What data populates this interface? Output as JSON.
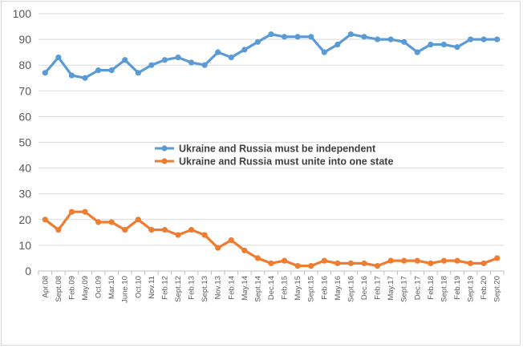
{
  "chart_data": {
    "type": "line",
    "title": "",
    "xlabel": "",
    "ylabel": "",
    "ylim": [
      0,
      100
    ],
    "yticks": [
      0,
      10,
      20,
      30,
      40,
      50,
      60,
      70,
      80,
      90,
      100
    ],
    "grid": true,
    "legend_position": "center-right",
    "categories": [
      "Apr.08",
      "Sept.08",
      "Feb.09",
      "May.09",
      "Oct.09",
      "Mar.10",
      "June.10",
      "Oct.10",
      "Nov.11",
      "Feb.12",
      "Sept.12",
      "Feb.13",
      "Sept.13",
      "Nov.13",
      "Feb.14",
      "May.14",
      "Sept.14",
      "Dec.14",
      "Feb.15",
      "May.15",
      "Sept.15",
      "Feb.16",
      "May.16",
      "Sept.16",
      "Dec.16",
      "Feb.17",
      "May.17",
      "Sept.17",
      "Dec.17",
      "Feb.18",
      "Sept.18",
      "Feb.19",
      "Sept.19",
      "Feb.20",
      "Sept.20"
    ],
    "series": [
      {
        "name": "Ukraine and Russia must be independent",
        "color": "#5b9bd5",
        "values": [
          77,
          83,
          76,
          75,
          78,
          78,
          82,
          77,
          80,
          82,
          83,
          81,
          80,
          85,
          83,
          86,
          89,
          92,
          91,
          91,
          91,
          85,
          88,
          92,
          91,
          90,
          90,
          89,
          85,
          88,
          88,
          87,
          90,
          90,
          90
        ]
      },
      {
        "name": "Ukraine and Russia must unite into one state",
        "color": "#ed7d31",
        "values": [
          20,
          16,
          23,
          23,
          19,
          19,
          16,
          20,
          16,
          16,
          14,
          16,
          14,
          9,
          12,
          8,
          5,
          3,
          4,
          2,
          2,
          4,
          3,
          3,
          3,
          2,
          4,
          4,
          4,
          3,
          4,
          4,
          3,
          3,
          5
        ]
      }
    ]
  }
}
